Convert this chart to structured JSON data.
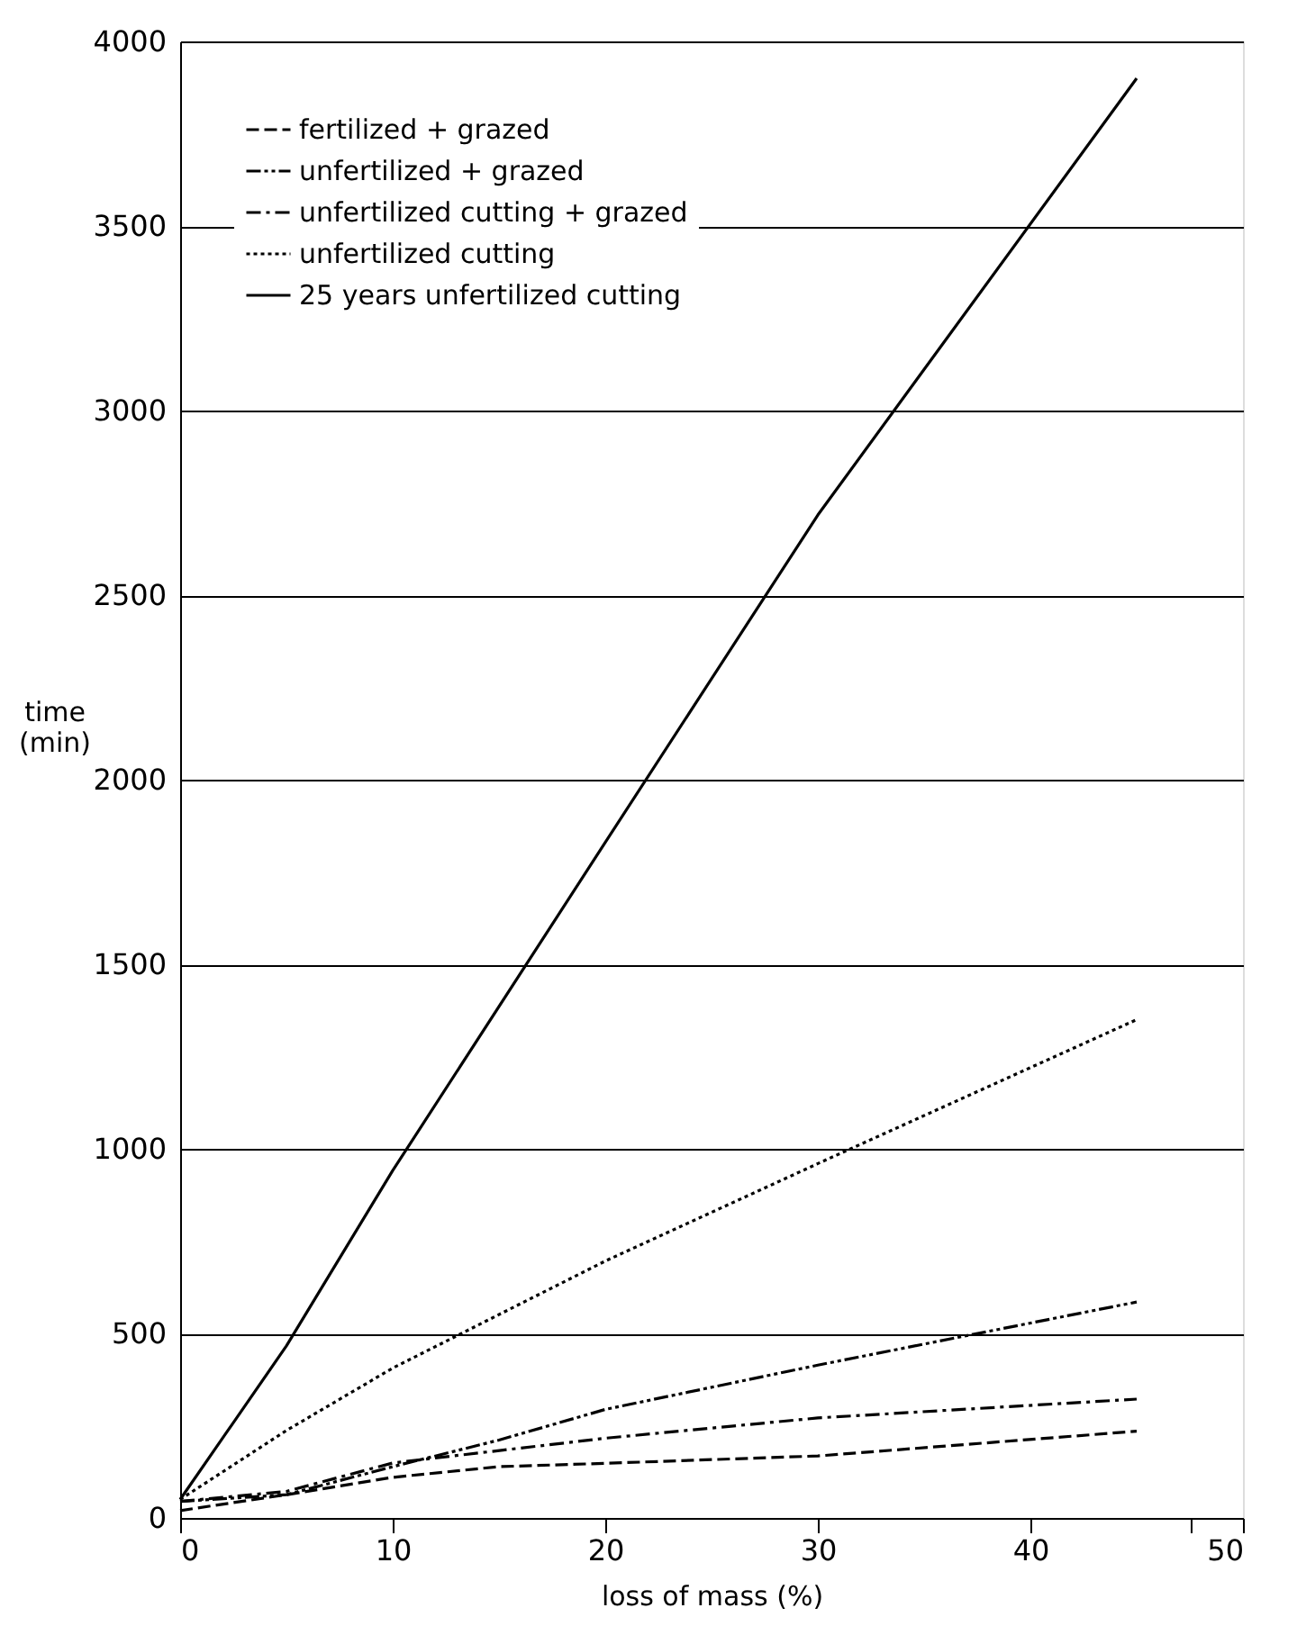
{
  "chart_data": {
    "type": "line",
    "xlabel": "loss of mass (%)",
    "ylabel": "time\n(min)",
    "xlim": [
      0,
      50
    ],
    "xticks": [
      0,
      10,
      20,
      30,
      40,
      {
        "value": 47.5,
        "label": null
      },
      50
    ],
    "ylim": [
      0,
      4000
    ],
    "yticks": [
      0,
      500,
      1000,
      1500,
      2000,
      2500,
      3000,
      3500,
      4000
    ],
    "grid": "y",
    "legend": "top left",
    "marker": "none",
    "series": [
      {
        "name": "fertilized + grazed",
        "color": "#000000",
        "line_style": "dashed",
        "x": [
          0,
          5,
          10,
          15,
          20,
          30,
          45
        ],
        "values": [
          20,
          63,
          110,
          139,
          148,
          168,
          235
        ]
      },
      {
        "name": "unfertilized + grazed",
        "color": "#000000",
        "line_style": "dashdotdot",
        "x": [
          0,
          5,
          10,
          15,
          20,
          30,
          45
        ],
        "values": [
          45,
          63,
          139,
          211,
          294,
          414,
          585
        ]
      },
      {
        "name": "unfertilized cutting + grazed",
        "color": "#000000",
        "line_style": "dashdot",
        "x": [
          0,
          5,
          10,
          20,
          30,
          45
        ],
        "values": [
          45,
          72,
          149,
          216,
          271,
          322
        ]
      },
      {
        "name": "unfertilized cutting",
        "color": "#000000",
        "line_style": "dotted",
        "x": [
          0,
          5,
          10,
          20,
          30,
          45
        ],
        "values": [
          50,
          237,
          406,
          696,
          960,
          1350
        ]
      },
      {
        "name": "25 years unfertilized cutting",
        "color": "#000000",
        "line_style": "solid",
        "x": [
          0,
          5,
          10,
          20,
          30,
          45
        ],
        "values": [
          50,
          466,
          941,
          1830,
          2717,
          3900
        ]
      }
    ]
  }
}
